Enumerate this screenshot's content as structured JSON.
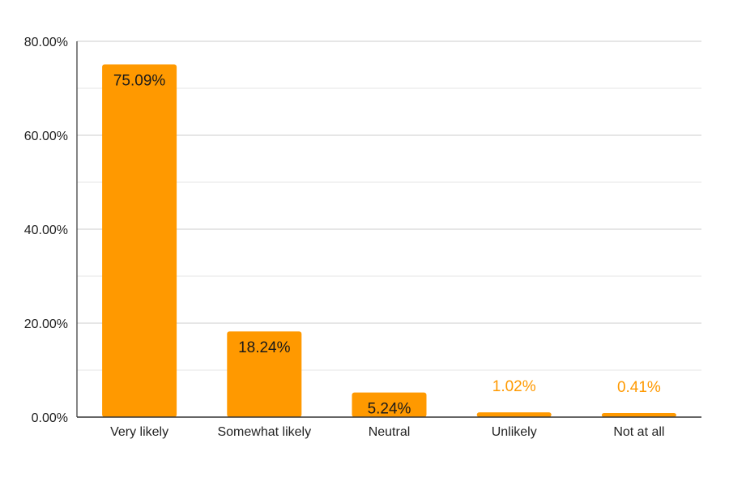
{
  "chart_data": {
    "type": "bar",
    "title": "",
    "xlabel": "",
    "ylabel": "",
    "categories": [
      "Very likely",
      "Somewhat likely",
      "Neutral",
      "Unlikely",
      "Not at all"
    ],
    "values": [
      75.09,
      18.24,
      5.24,
      1.02,
      0.41
    ],
    "value_labels": [
      "75.09%",
      "18.24%",
      "5.24%",
      "1.02%",
      "0.41%"
    ],
    "ylim": [
      0,
      80
    ],
    "yticks": [
      0,
      20,
      40,
      60,
      80
    ],
    "ytick_labels": [
      "0.00%",
      "20.00%",
      "40.00%",
      "60.00%",
      "80.00%"
    ],
    "grid": true,
    "legend": "none",
    "colors": {
      "bar": "#ff9900",
      "label_inside": "#1a1a1a",
      "label_outside": "#ff9900",
      "grid_major": "#cccccc",
      "grid_minor": "#e6e6e6",
      "axis": "#333333",
      "tick_text": "#222222"
    }
  }
}
